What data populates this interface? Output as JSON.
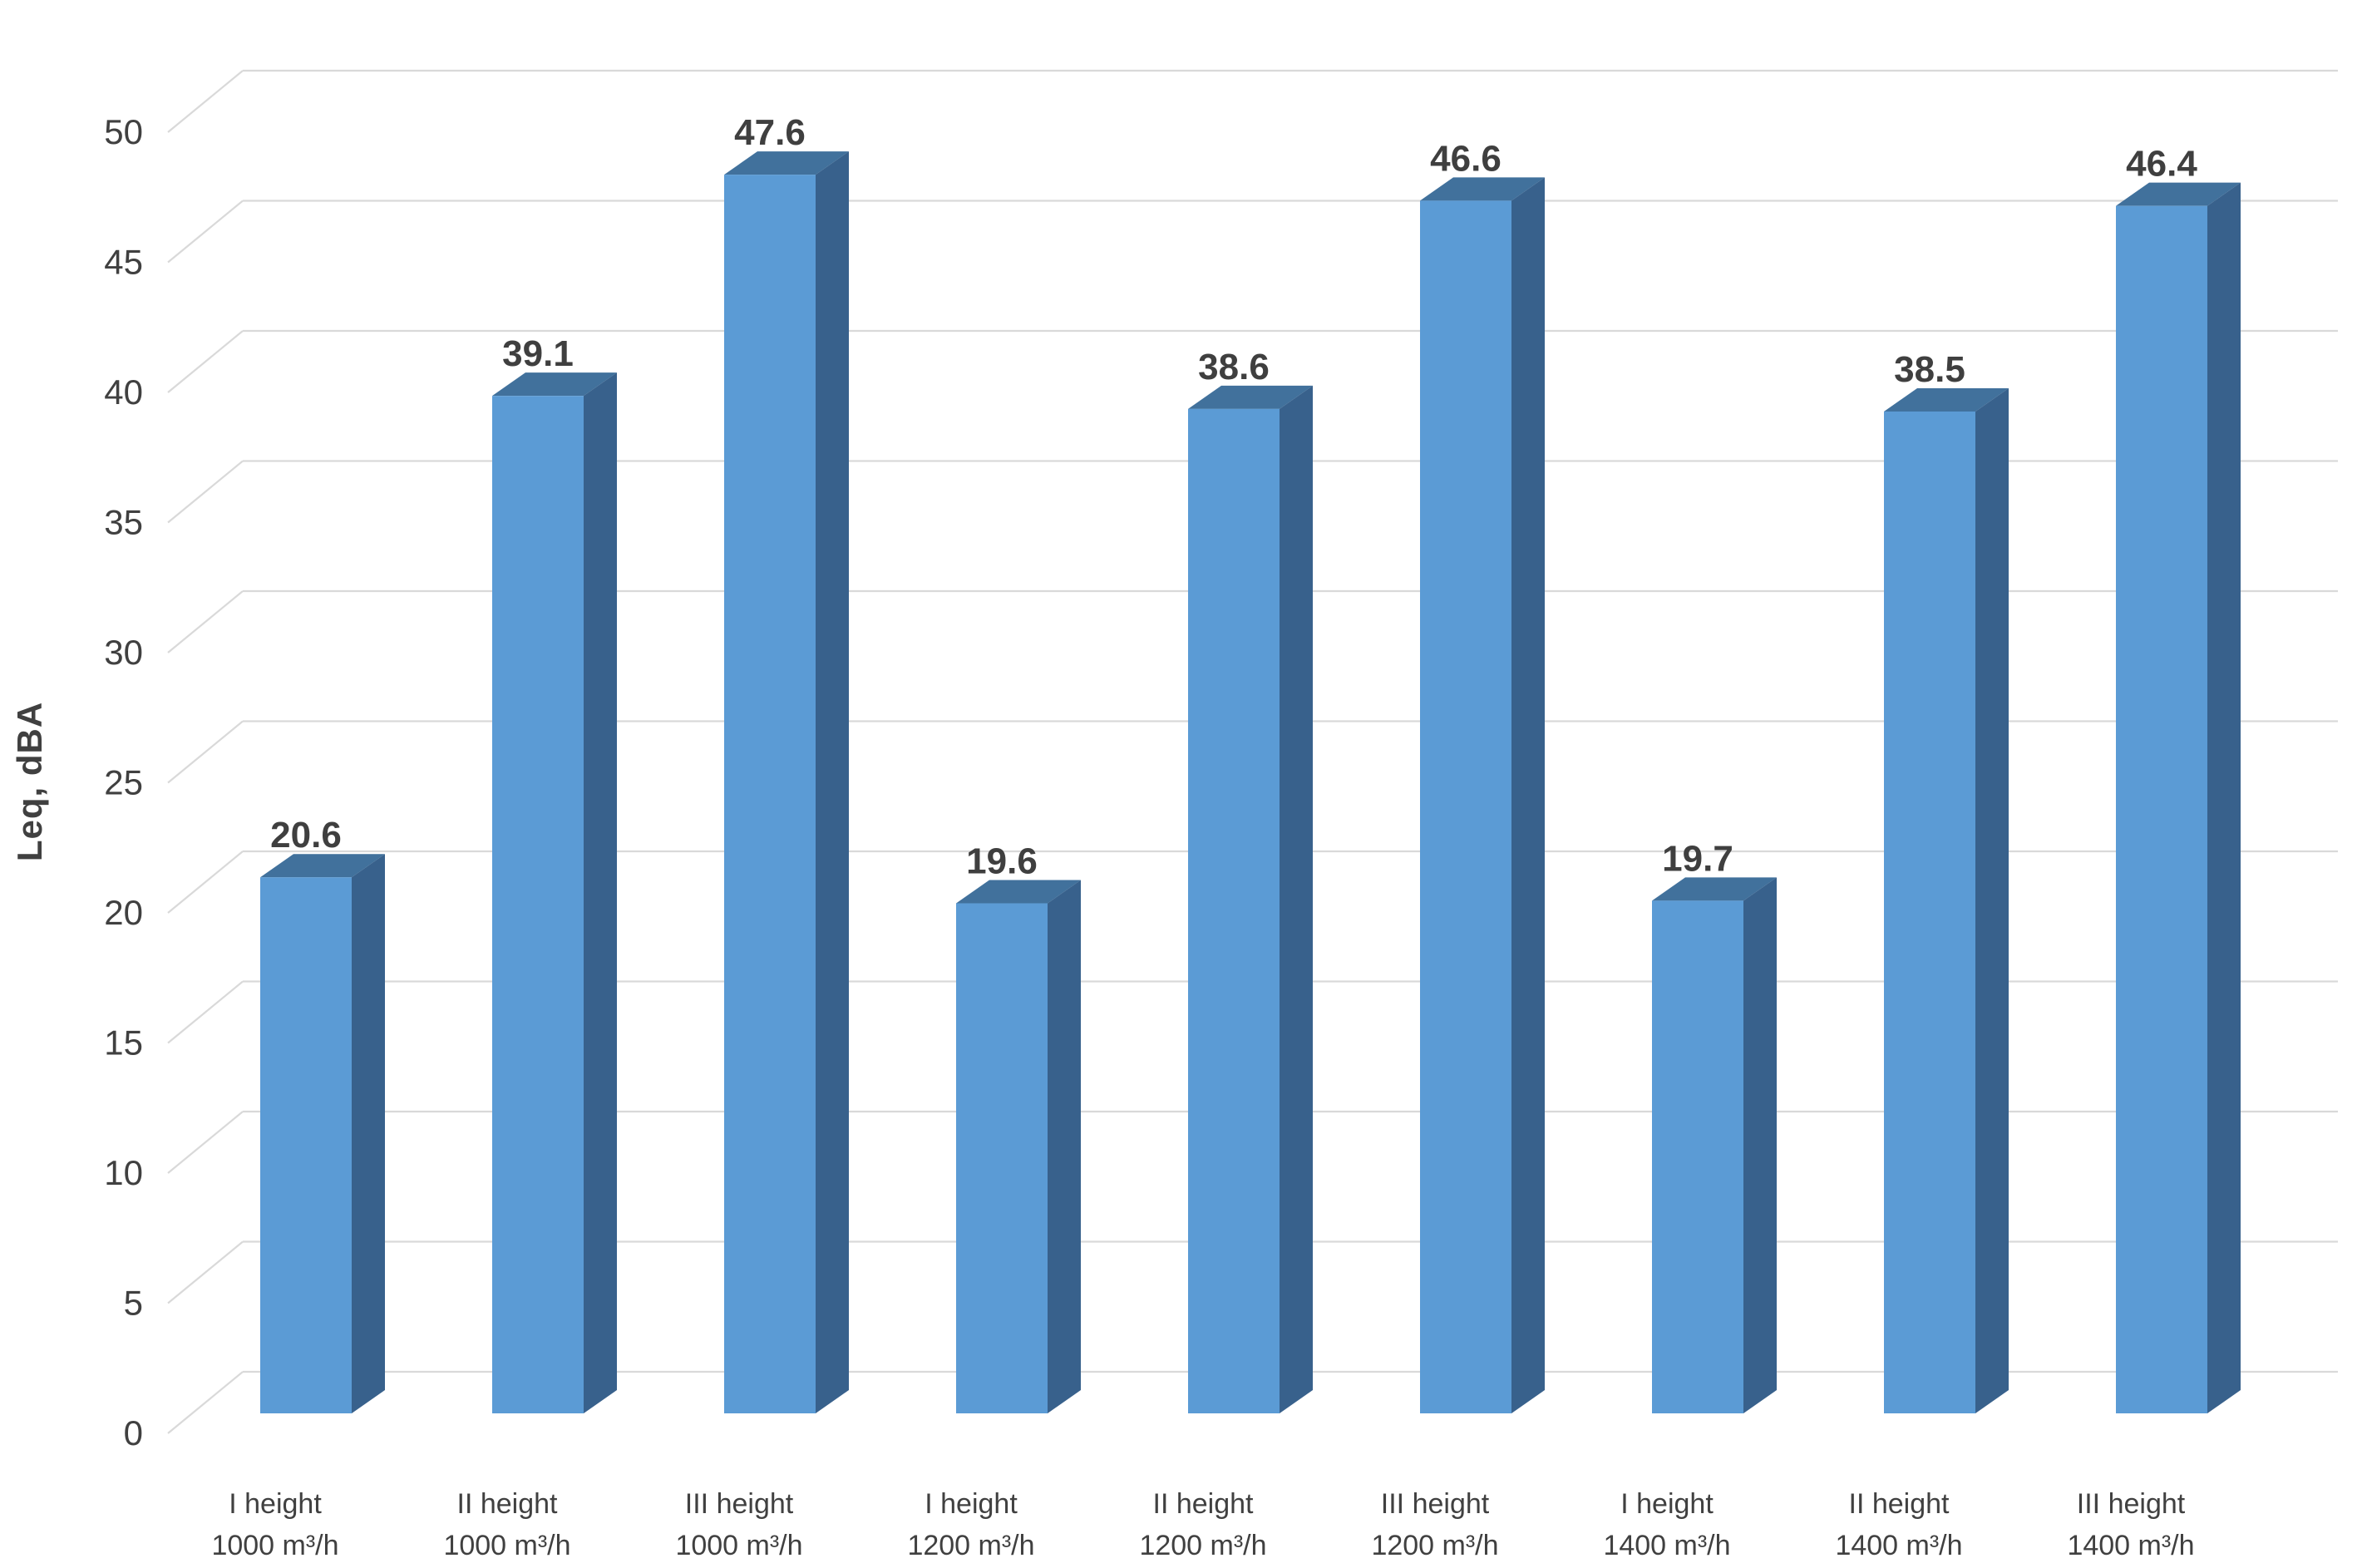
{
  "chart_data": {
    "type": "bar",
    "style": "3d-oblique-column",
    "title": "",
    "xlabel": "",
    "ylabel": "Leq, dBA",
    "ylim": [
      0,
      50
    ],
    "ytick_step": 5,
    "yticks": [
      0,
      5,
      10,
      15,
      20,
      25,
      30,
      35,
      40,
      45,
      50
    ],
    "grid": true,
    "legend_position": "none",
    "categories": [
      [
        "I height",
        "1000 m³/h"
      ],
      [
        "II height",
        "1000 m³/h"
      ],
      [
        "III height",
        "1000 m³/h"
      ],
      [
        "I height",
        "1200 m³/h"
      ],
      [
        "II height",
        "1200 m³/h"
      ],
      [
        "III height",
        "1200 m³/h"
      ],
      [
        "I height",
        "1400 m³/h"
      ],
      [
        "II height",
        "1400 m³/h"
      ],
      [
        "III height",
        "1400 m³/h"
      ]
    ],
    "values": [
      20.6,
      39.1,
      47.6,
      19.6,
      38.6,
      46.6,
      19.7,
      38.5,
      46.4
    ],
    "data_labels_shown": true
  },
  "colors": {
    "background": "#FFFFFF",
    "bar_front": "#5B9BD5",
    "bar_top": "#41719C",
    "bar_side": "#38618C",
    "gridline": "#D9D9D9",
    "tick_text": "#404040",
    "value_label_text": "#3F3F3F",
    "category_text": "#404040"
  }
}
